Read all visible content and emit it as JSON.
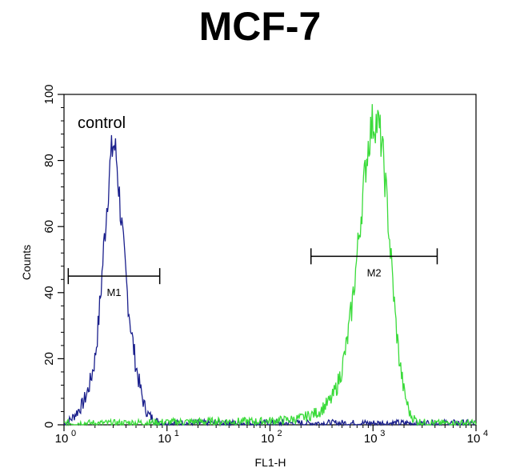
{
  "chart_data": {
    "type": "line",
    "title": "MCF-7",
    "xlabel": "FL1-H",
    "ylabel": "Counts",
    "x_scale": "log",
    "xlim": [
      1,
      10000
    ],
    "ylim": [
      0,
      100
    ],
    "x_ticks": [
      {
        "base": "10",
        "exp": "0"
      },
      {
        "base": "10",
        "exp": "1"
      },
      {
        "base": "10",
        "exp": "2"
      },
      {
        "base": "10",
        "exp": "3"
      },
      {
        "base": "10",
        "exp": "4"
      }
    ],
    "y_ticks": [
      "0",
      "20",
      "40",
      "60",
      "80",
      "100"
    ],
    "annotation": "control",
    "series": [
      {
        "color": "#1a1f8c",
        "x": [
          1.0,
          1.1,
          1.2,
          1.35,
          1.5,
          1.65,
          1.8,
          2.0,
          2.15,
          2.3,
          2.45,
          2.6,
          2.75,
          2.9,
          3.0,
          3.1,
          3.25,
          3.4,
          3.6,
          3.8,
          4.0,
          4.3,
          4.6,
          5.0,
          5.5,
          6.0,
          6.6,
          7.2,
          8.0,
          9.0,
          10,
          12,
          15,
          20,
          30,
          50,
          100,
          300,
          1000,
          3000,
          10000
        ],
        "y": [
          0,
          1,
          2,
          4,
          6,
          9,
          13,
          20,
          30,
          42,
          55,
          66,
          76,
          82,
          85,
          84,
          80,
          72,
          62,
          52,
          44,
          34,
          26,
          18,
          11,
          6,
          3,
          2,
          1,
          0.5,
          0.5,
          0.5,
          0.5,
          0.5,
          0.5,
          0.5,
          0.5,
          0.5,
          0.5,
          0.5,
          0.5
        ]
      },
      {
        "color": "#3adb3a",
        "x": [
          1,
          3,
          10,
          30,
          80,
          150,
          200,
          250,
          300,
          350,
          400,
          450,
          500,
          560,
          620,
          680,
          740,
          800,
          860,
          920,
          980,
          1050,
          1120,
          1200,
          1280,
          1360,
          1450,
          1550,
          1650,
          1800,
          2000,
          2300,
          2700,
          3500,
          10000
        ],
        "y": [
          0.5,
          0.5,
          0.8,
          1,
          1,
          1.5,
          2,
          3,
          4,
          6,
          8,
          12,
          17,
          25,
          35,
          47,
          59,
          70,
          80,
          87,
          91,
          92,
          91,
          86,
          78,
          68,
          56,
          44,
          32,
          20,
          10,
          3,
          1,
          0.5,
          0.5
        ]
      }
    ],
    "markers": [
      {
        "label": "M1",
        "x_range": [
          1.1,
          8.5
        ],
        "y": 45
      },
      {
        "label": "M2",
        "x_range": [
          250,
          4200
        ],
        "y": 51
      }
    ]
  }
}
